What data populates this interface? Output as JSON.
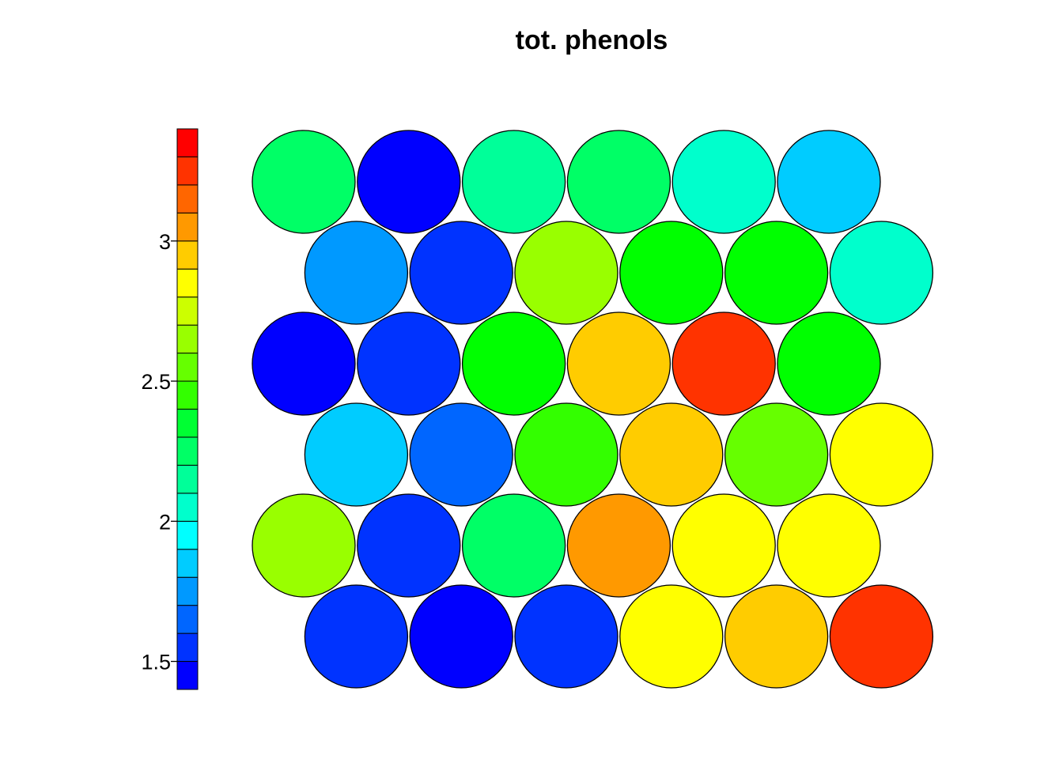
{
  "chart_data": {
    "type": "heatmap",
    "subtype": "hexagonal-som-property-map",
    "title": "tot. phenols",
    "grid": {
      "rows": 6,
      "cols": 6,
      "topology": "hexagonal"
    },
    "rows_top_to_bottom": [
      [
        2.2,
        1.43,
        2.08,
        2.19,
        2.05,
        1.84
      ],
      [
        1.73,
        1.53,
        2.73,
        2.42,
        2.38,
        2.05
      ],
      [
        1.43,
        1.45,
        2.42,
        2.98,
        3.33,
        2.42
      ],
      [
        1.84,
        1.63,
        2.52,
        2.98,
        2.62,
        2.88
      ],
      [
        2.73,
        1.53,
        2.2,
        3.08,
        2.88,
        2.88
      ],
      [
        1.53,
        1.43,
        1.53,
        2.88,
        2.98,
        3.33
      ]
    ],
    "colorbar": {
      "min": 1.4,
      "max": 3.4,
      "steps": 20,
      "ticks": [
        "1.5",
        "2",
        "2.5",
        "3"
      ],
      "tick_values": [
        1.5,
        2.0,
        2.5,
        3.0
      ],
      "colors": [
        "#0000FF",
        "#0033FF",
        "#0066FF",
        "#0099FF",
        "#00CCFF",
        "#00FFFF",
        "#00FFCC",
        "#00FF99",
        "#00FF66",
        "#00FF33",
        "#00FF00",
        "#33FF00",
        "#66FF00",
        "#99FF00",
        "#CCFF00",
        "#FFFF00",
        "#FFCC00",
        "#FF9900",
        "#FF6600",
        "#FF3300",
        "#FF0000"
      ],
      "placement": "left"
    },
    "grid_lines": false,
    "legend": "none"
  }
}
